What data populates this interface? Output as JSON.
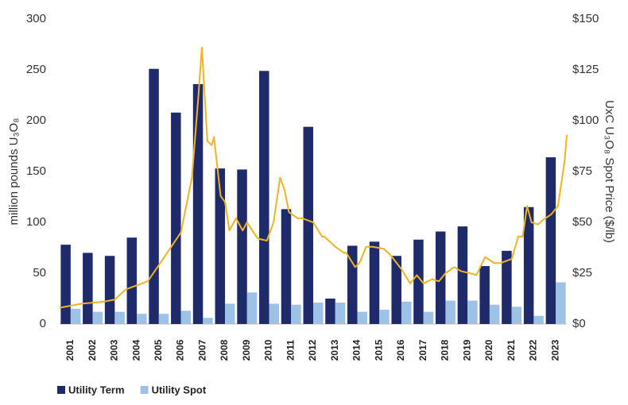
{
  "chart_data": {
    "type": "bar",
    "categories": [
      "2001",
      "2002",
      "2003",
      "2004",
      "2005",
      "2006",
      "2007",
      "2008",
      "2009",
      "2010",
      "2011",
      "2012",
      "2013",
      "2014",
      "2015",
      "2016",
      "2017",
      "2018",
      "2019",
      "2020",
      "2021",
      "2022",
      "2023"
    ],
    "series": [
      {
        "name": "Utility Term",
        "color": "#1f2a6b",
        "values": [
          78,
          70,
          67,
          85,
          251,
          208,
          236,
          153,
          152,
          249,
          113,
          194,
          25,
          77,
          81,
          67,
          83,
          91,
          96,
          57,
          72,
          115,
          164
        ]
      },
      {
        "name": "Utility Spot",
        "color": "#9cc3e6",
        "values": [
          15,
          12,
          12,
          10,
          10,
          13,
          6,
          20,
          31,
          20,
          19,
          21,
          21,
          12,
          14,
          22,
          12,
          23,
          23,
          19,
          17,
          8,
          41
        ]
      },
      {
        "type": "line",
        "axis": "y2",
        "color": "#f0b323",
        "x": [
          2001.0,
          2001.5,
          2002.0,
          2003.0,
          2003.5,
          2004.0,
          2004.5,
          2005.0,
          2005.5,
          2006.0,
          2006.5,
          2007.0,
          2007.3,
          2007.45,
          2007.7,
          2007.9,
          2008.0,
          2008.3,
          2008.5,
          2008.7,
          2009.0,
          2009.3,
          2009.5,
          2009.8,
          2010.0,
          2010.4,
          2010.7,
          2011.0,
          2011.2,
          2011.4,
          2011.8,
          2012.0,
          2012.5,
          2012.9,
          2013.0,
          2013.5,
          2013.9,
          2014.0,
          2014.4,
          2014.6,
          2014.9,
          2015.2,
          2015.7,
          2016.0,
          2016.5,
          2016.9,
          2017.2,
          2017.5,
          2017.9,
          2018.2,
          2018.5,
          2018.9,
          2019.2,
          2019.6,
          2019.9,
          2020.3,
          2020.7,
          2021.0,
          2021.5,
          2021.8,
          2022.0,
          2022.2,
          2022.4,
          2022.7,
          2022.9,
          2023.3,
          2023.6,
          2023.9,
          2024.0
        ],
        "values": [
          8,
          9,
          10,
          11,
          12,
          17,
          19,
          21,
          29,
          37,
          45,
          72,
          113,
          136,
          90,
          88,
          92,
          63,
          60,
          46,
          52,
          46,
          50,
          45,
          42,
          41,
          50,
          72,
          66,
          55,
          52,
          52,
          50,
          43,
          43,
          38,
          35,
          35,
          28,
          30,
          38,
          38,
          37,
          34,
          27,
          20,
          24,
          20,
          22,
          21,
          25,
          28,
          26,
          25,
          24,
          33,
          30,
          30,
          32,
          43,
          43,
          58,
          50,
          49,
          51,
          54,
          58,
          80,
          93
        ]
      }
    ],
    "xlim": [
      2001,
      2024
    ],
    "ylabel": "million pounds U₃O₈",
    "ylim": [
      0,
      300
    ],
    "yticks": [
      0,
      50,
      100,
      150,
      200,
      250,
      300
    ],
    "y2label": "UxC U₃O₈ Spot Price ($/lb)",
    "y2lim": [
      0,
      150
    ],
    "y2ticks": [
      {
        "value": 0,
        "label": "$0"
      },
      {
        "value": 25,
        "label": "$25"
      },
      {
        "value": 50,
        "label": "$50"
      },
      {
        "value": 75,
        "label": "$75"
      },
      {
        "value": 100,
        "label": "$100"
      },
      {
        "value": 125,
        "label": "$125"
      },
      {
        "value": 150,
        "label": "$150"
      }
    ],
    "legend": "bottom-left"
  }
}
